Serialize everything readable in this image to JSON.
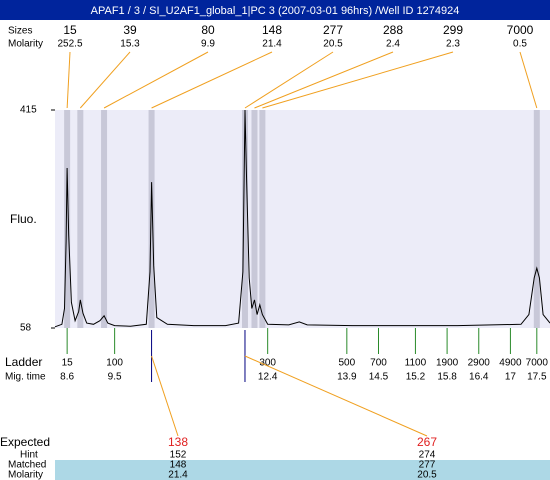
{
  "chart_data": {
    "type": "line",
    "title": "APAF1 / 3 / SI_U2AF1_global_1|PC 3 (2007-03-01 96hrs) /Well ID 1274924",
    "y_label": "Fluo.",
    "ylim": [
      58,
      415
    ],
    "yticks": [
      58,
      415
    ],
    "xlim": [
      8.37,
      17.75
    ],
    "color": "#000000",
    "x": [
      8.37,
      8.5,
      8.55,
      8.58,
      8.6,
      8.63,
      8.68,
      8.75,
      8.82,
      8.85,
      8.9,
      8.97,
      9.1,
      9.22,
      9.3,
      9.37,
      9.5,
      9.8,
      10.1,
      10.17,
      10.2,
      10.24,
      10.3,
      10.5,
      11.0,
      11.6,
      11.85,
      11.93,
      11.97,
      12.0,
      12.05,
      12.1,
      12.15,
      12.2,
      12.25,
      12.3,
      12.4,
      12.8,
      13.0,
      13.15,
      14,
      15,
      16,
      17.2,
      17.35,
      17.45,
      17.5,
      17.55,
      17.62,
      17.75
    ],
    "values": [
      60,
      64,
      90,
      200,
      320,
      210,
      100,
      70,
      85,
      104,
      82,
      66,
      64,
      70,
      78,
      66,
      62,
      61,
      64,
      150,
      297,
      160,
      75,
      64,
      62,
      62,
      66,
      150,
      415,
      300,
      140,
      90,
      104,
      80,
      96,
      80,
      64,
      63,
      68,
      63,
      62,
      62,
      62,
      64,
      80,
      140,
      156,
      140,
      80,
      66
    ],
    "peaks": {
      "sizes_label": "Sizes",
      "molarity_label": "Molarity",
      "sizes": [
        15,
        39,
        80,
        148,
        277,
        288,
        299,
        7000
      ],
      "molarity": [
        252.5,
        15.3,
        9.9,
        21.4,
        20.5,
        2.4,
        2.3,
        0.5
      ],
      "mig_time": [
        8.6,
        8.85,
        9.3,
        10.2,
        11.97,
        12.15,
        12.3,
        17.5
      ]
    },
    "ladder": {
      "label": "Ladder",
      "time_label": "Mig. time",
      "sizes": [
        15,
        100,
        300,
        500,
        700,
        1100,
        1900,
        2900,
        4900,
        7000
      ],
      "mig_time": [
        8.6,
        9.5,
        12.4,
        13.9,
        14.5,
        15.2,
        15.8,
        16.4,
        17,
        17.5
      ]
    },
    "expected": {
      "label": "Expected",
      "hint_label": "Hint",
      "matched_label": "Matched",
      "molarity_label": "Molarity",
      "expected": [
        138,
        267
      ],
      "hint": [
        152,
        274
      ],
      "matched": [
        148,
        277
      ],
      "molarity": [
        21.4,
        20.5
      ]
    }
  }
}
